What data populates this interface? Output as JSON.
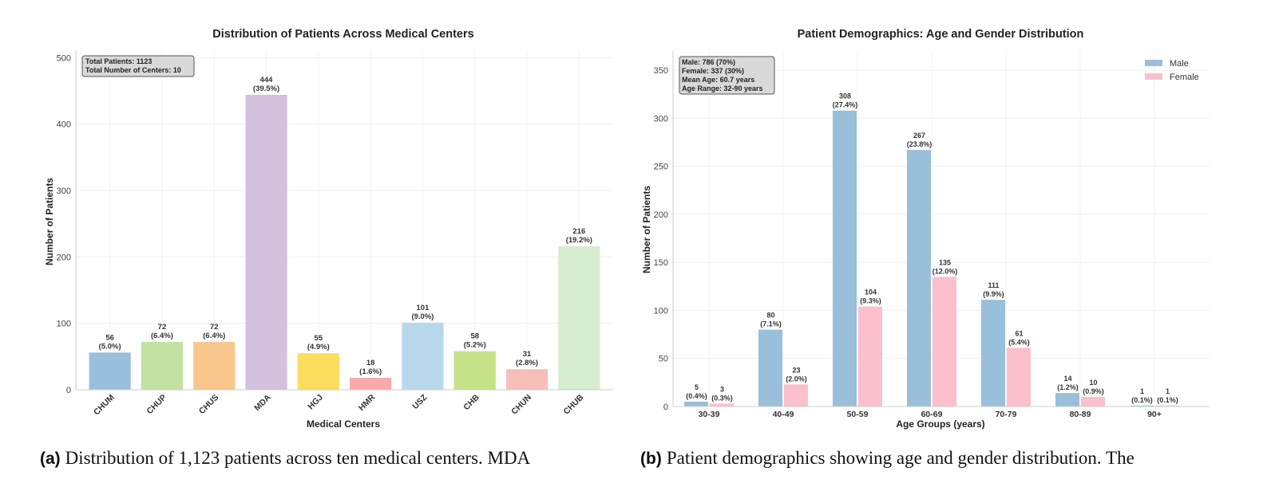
{
  "chart_data": [
    {
      "type": "bar",
      "title": "Distribution of Patients Across Medical Centers",
      "xlabel": "Medical Centers",
      "ylabel": "Number of Patients",
      "ylim": [
        0,
        510
      ],
      "yticks": [
        0,
        100,
        200,
        300,
        400,
        500
      ],
      "grid": true,
      "categories": [
        "CHUM",
        "CHUP",
        "CHUS",
        "MDA",
        "HGJ",
        "HMR",
        "USZ",
        "CHB",
        "CHUN",
        "CHUB"
      ],
      "values": [
        56,
        72,
        72,
        444,
        55,
        18,
        101,
        58,
        31,
        216
      ],
      "percent_labels": [
        "(5.0%)",
        "(6.4%)",
        "(6.4%)",
        "(39.5%)",
        "(4.9%)",
        "(1.6%)",
        "(9.0%)",
        "(5.2%)",
        "(2.8%)",
        "(19.2%)"
      ],
      "colors": [
        "#9ABFDC",
        "#C3E2A2",
        "#F9C78D",
        "#D4C1DE",
        "#FCDD5E",
        "#F8A9A9",
        "#B8D7EA",
        "#C5E289",
        "#F8BFBA",
        "#D6EDD0"
      ],
      "annotation": [
        "Total Patients: 1123",
        "Total Number of Centers: 10"
      ]
    },
    {
      "type": "bar",
      "title": "Patient Demographics: Age and Gender Distribution",
      "xlabel": "Age Groups (years)",
      "ylabel": "Number of Patients",
      "ylim": [
        0,
        370
      ],
      "yticks": [
        0,
        50,
        100,
        150,
        200,
        250,
        300,
        350
      ],
      "grid": true,
      "legend_position": "top-right",
      "categories": [
        "30-39",
        "40-49",
        "50-59",
        "60-69",
        "70-79",
        "80-89",
        "90+"
      ],
      "series": [
        {
          "name": "Male",
          "color": "#99BFDA",
          "values": [
            5,
            80,
            308,
            267,
            111,
            14,
            1
          ],
          "percent_labels": [
            "(0.4%)",
            "(7.1%)",
            "(27.4%)",
            "(23.8%)",
            "(9.9%)",
            "(1.2%)",
            "(0.1%)"
          ]
        },
        {
          "name": "Female",
          "color": "#FBC0CB",
          "values": [
            3,
            23,
            104,
            135,
            61,
            10,
            1
          ],
          "percent_labels": [
            "(0.3%)",
            "(2.0%)",
            "(9.3%)",
            "(12.0%)",
            "(5.4%)",
            "(0.9%)",
            "(0.1%)"
          ]
        }
      ],
      "annotation": [
        "Male: 786 (70%)",
        "Female: 337 (30%)",
        "Mean Age: 60.7 years",
        "Age Range: 32-90 years"
      ]
    }
  ],
  "captions": {
    "a": {
      "label": "(a)",
      "text": "Distribution of 1,123 patients across ten medical centers. MDA"
    },
    "b": {
      "label": "(b)",
      "text": "Patient demographics showing age and gender distribution. The"
    }
  }
}
